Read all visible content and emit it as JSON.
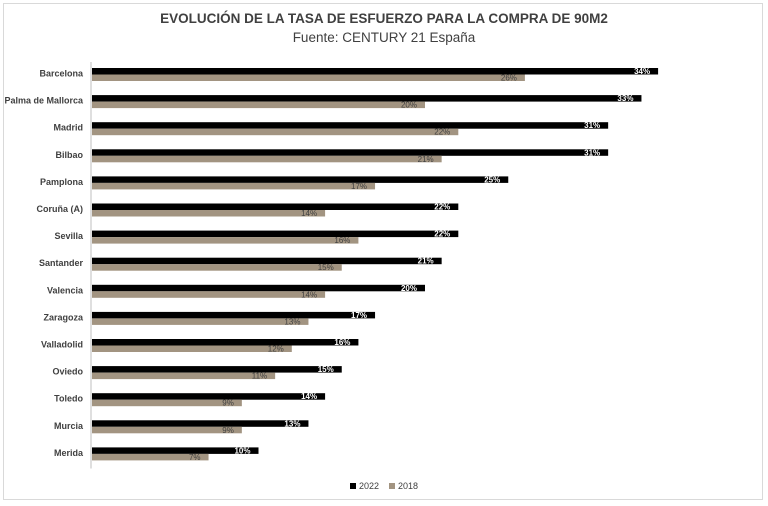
{
  "chart_data": {
    "type": "bar",
    "orientation": "horizontal",
    "title": "EVOLUCIÓN DE LA TASA DE ESFUERZO PARA LA COMPRA DE 90M2",
    "subtitle": "Fuente: CENTURY 21 España",
    "categories": [
      "Barcelona",
      "Palma de Mallorca",
      "Madrid",
      "Bilbao",
      "Pamplona",
      "Coruña (A)",
      "Sevilla",
      "Santander",
      "Valencia",
      "Zaragoza",
      "Valladolid",
      "Oviedo",
      "Toledo",
      "Murcia",
      "Merida"
    ],
    "series": [
      {
        "name": "2022",
        "color": "#000000",
        "values": [
          34,
          33,
          31,
          31,
          25,
          22,
          22,
          21,
          20,
          17,
          16,
          15,
          14,
          13,
          10
        ],
        "labels": [
          "34%",
          "33%",
          "31%",
          "31%",
          "25%",
          "22%",
          "22%",
          "21%",
          "20%",
          "17%",
          "16%",
          "15%",
          "14%",
          "13%",
          "10%"
        ]
      },
      {
        "name": "2018",
        "color": "#a29481",
        "values": [
          26,
          20,
          22,
          21,
          17,
          14,
          16,
          15,
          14,
          13,
          12,
          11,
          9,
          9,
          7
        ],
        "labels": [
          "26%",
          "20%",
          "22%",
          "21%",
          "17%",
          "14%",
          "16%",
          "15%",
          "14%",
          "13%",
          "12%",
          "11%",
          "9%",
          "9%",
          "7%"
        ]
      }
    ],
    "xlabel": "",
    "ylabel": "",
    "xlim": [
      0,
      35
    ],
    "grid": false,
    "legend_position": "bottom"
  }
}
